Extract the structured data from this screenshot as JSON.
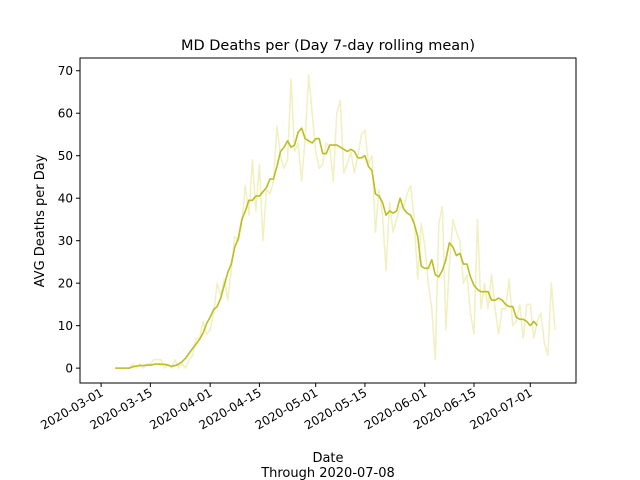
{
  "chart_data": {
    "type": "line",
    "title": "MD Deaths per (Day 7-day rolling mean)",
    "xlabel": "Date",
    "xlabel_sub": "Through 2020-07-08",
    "ylabel": "AVG Deaths per Day",
    "x_ticks": [
      "2020-03-01",
      "2020-03-15",
      "2020-04-01",
      "2020-04-15",
      "2020-05-01",
      "2020-05-15",
      "2020-06-01",
      "2020-06-15",
      "2020-07-01"
    ],
    "y_ticks": [
      0,
      10,
      20,
      30,
      40,
      50,
      60,
      70
    ],
    "xlim": [
      "2020-02-24",
      "2020-07-14"
    ],
    "ylim": [
      -3.5,
      73
    ],
    "grid": false,
    "colors": {
      "rolling_mean": "#bcbd22",
      "daily": "#f0f0c0"
    },
    "series": [
      {
        "role": "daily",
        "points": [
          [
            "2020-03-05",
            0
          ],
          [
            "2020-03-06",
            0
          ],
          [
            "2020-03-07",
            0
          ],
          [
            "2020-03-08",
            0
          ],
          [
            "2020-03-09",
            0
          ],
          [
            "2020-03-10",
            1
          ],
          [
            "2020-03-11",
            0
          ],
          [
            "2020-03-12",
            1
          ],
          [
            "2020-03-13",
            0
          ],
          [
            "2020-03-14",
            1
          ],
          [
            "2020-03-15",
            1
          ],
          [
            "2020-03-16",
            2
          ],
          [
            "2020-03-17",
            2
          ],
          [
            "2020-03-18",
            2
          ],
          [
            "2020-03-19",
            0
          ],
          [
            "2020-03-20",
            1
          ],
          [
            "2020-03-21",
            0
          ],
          [
            "2020-03-22",
            2
          ],
          [
            "2020-03-23",
            0
          ],
          [
            "2020-03-24",
            1
          ],
          [
            "2020-03-25",
            0
          ],
          [
            "2020-03-26",
            2
          ],
          [
            "2020-03-27",
            3
          ],
          [
            "2020-03-28",
            7
          ],
          [
            "2020-03-29",
            7
          ],
          [
            "2020-03-30",
            11
          ],
          [
            "2020-03-31",
            8
          ],
          [
            "2020-04-01",
            9
          ],
          [
            "2020-04-02",
            13
          ],
          [
            "2020-04-03",
            20
          ],
          [
            "2020-04-04",
            17
          ],
          [
            "2020-04-05",
            21
          ],
          [
            "2020-04-06",
            16
          ],
          [
            "2020-04-07",
            23
          ],
          [
            "2020-04-08",
            31
          ],
          [
            "2020-04-09",
            30
          ],
          [
            "2020-04-10",
            34
          ],
          [
            "2020-04-11",
            43
          ],
          [
            "2020-04-12",
            36
          ],
          [
            "2020-04-13",
            49
          ],
          [
            "2020-04-14",
            37
          ],
          [
            "2020-04-15",
            48
          ],
          [
            "2020-04-16",
            30
          ],
          [
            "2020-04-17",
            42
          ],
          [
            "2020-04-18",
            41
          ],
          [
            "2020-04-19",
            44
          ],
          [
            "2020-04-20",
            57
          ],
          [
            "2020-04-21",
            50
          ],
          [
            "2020-04-22",
            47
          ],
          [
            "2020-04-23",
            49
          ],
          [
            "2020-04-24",
            68
          ],
          [
            "2020-04-25",
            51
          ],
          [
            "2020-04-26",
            53
          ],
          [
            "2020-04-27",
            44
          ],
          [
            "2020-04-28",
            54
          ],
          [
            "2020-04-29",
            69
          ],
          [
            "2020-04-30",
            60
          ],
          [
            "2020-05-01",
            51
          ],
          [
            "2020-05-02",
            47
          ],
          [
            "2020-05-03",
            48
          ],
          [
            "2020-05-04",
            53
          ],
          [
            "2020-05-05",
            52
          ],
          [
            "2020-05-06",
            44
          ],
          [
            "2020-05-07",
            60
          ],
          [
            "2020-05-08",
            63
          ],
          [
            "2020-05-09",
            46
          ],
          [
            "2020-05-10",
            48
          ],
          [
            "2020-05-11",
            51
          ],
          [
            "2020-05-12",
            46
          ],
          [
            "2020-05-13",
            50
          ],
          [
            "2020-05-14",
            55
          ],
          [
            "2020-05-15",
            56
          ],
          [
            "2020-05-16",
            48
          ],
          [
            "2020-05-17",
            50
          ],
          [
            "2020-05-18",
            32
          ],
          [
            "2020-05-19",
            42
          ],
          [
            "2020-05-20",
            36
          ],
          [
            "2020-05-21",
            23
          ],
          [
            "2020-05-22",
            39
          ],
          [
            "2020-05-23",
            32
          ],
          [
            "2020-05-24",
            35
          ],
          [
            "2020-05-25",
            38
          ],
          [
            "2020-05-26",
            38
          ],
          [
            "2020-05-27",
            41
          ],
          [
            "2020-05-28",
            43
          ],
          [
            "2020-05-29",
            35
          ],
          [
            "2020-05-30",
            21
          ],
          [
            "2020-05-31",
            34
          ],
          [
            "2020-06-01",
            29
          ],
          [
            "2020-06-02",
            20
          ],
          [
            "2020-06-03",
            14
          ],
          [
            "2020-06-04",
            2
          ],
          [
            "2020-06-05",
            34
          ],
          [
            "2020-06-06",
            38
          ],
          [
            "2020-06-07",
            9
          ],
          [
            "2020-06-08",
            24
          ],
          [
            "2020-06-09",
            35
          ],
          [
            "2020-06-10",
            32
          ],
          [
            "2020-06-11",
            30
          ],
          [
            "2020-06-12",
            20
          ],
          [
            "2020-06-13",
            22
          ],
          [
            "2020-06-14",
            13
          ],
          [
            "2020-06-15",
            8
          ],
          [
            "2020-06-16",
            35
          ],
          [
            "2020-06-17",
            14
          ],
          [
            "2020-06-18",
            20
          ],
          [
            "2020-06-19",
            14
          ],
          [
            "2020-06-20",
            22
          ],
          [
            "2020-06-21",
            14
          ],
          [
            "2020-06-22",
            8
          ],
          [
            "2020-06-23",
            14
          ],
          [
            "2020-06-24",
            14
          ],
          [
            "2020-06-25",
            21
          ],
          [
            "2020-06-26",
            10
          ],
          [
            "2020-06-27",
            11
          ],
          [
            "2020-06-28",
            15
          ],
          [
            "2020-06-29",
            7
          ],
          [
            "2020-06-30",
            15
          ],
          [
            "2020-07-01",
            15
          ],
          [
            "2020-07-02",
            7
          ],
          [
            "2020-07-03",
            11
          ],
          [
            "2020-07-04",
            13
          ],
          [
            "2020-07-05",
            6
          ],
          [
            "2020-07-06",
            3
          ],
          [
            "2020-07-07",
            20
          ],
          [
            "2020-07-08",
            9
          ]
        ]
      },
      {
        "role": "rolling_mean",
        "points": [
          [
            "2020-03-05",
            0
          ],
          [
            "2020-03-06",
            0
          ],
          [
            "2020-03-07",
            0
          ],
          [
            "2020-03-08",
            0
          ],
          [
            "2020-03-09",
            0
          ],
          [
            "2020-03-10",
            0.3
          ],
          [
            "2020-03-11",
            0.5
          ],
          [
            "2020-03-12",
            0.6
          ],
          [
            "2020-03-13",
            0.6
          ],
          [
            "2020-03-14",
            0.7
          ],
          [
            "2020-03-15",
            0.7
          ],
          [
            "2020-03-16",
            0.9
          ],
          [
            "2020-03-17",
            1
          ],
          [
            "2020-03-18",
            0.9
          ],
          [
            "2020-03-19",
            0.9
          ],
          [
            "2020-03-20",
            0.7
          ],
          [
            "2020-03-21",
            0.4
          ],
          [
            "2020-03-22",
            0.6
          ],
          [
            "2020-03-23",
            0.9
          ],
          [
            "2020-03-24",
            1.5
          ],
          [
            "2020-03-25",
            2.3
          ],
          [
            "2020-03-26",
            3.5
          ],
          [
            "2020-03-27",
            4.6
          ],
          [
            "2020-03-28",
            5.7
          ],
          [
            "2020-03-29",
            6.8
          ],
          [
            "2020-03-30",
            8.3
          ],
          [
            "2020-03-31",
            10.5
          ],
          [
            "2020-04-01",
            12
          ],
          [
            "2020-04-02",
            13.8
          ],
          [
            "2020-04-03",
            14.5
          ],
          [
            "2020-04-04",
            16.5
          ],
          [
            "2020-04-05",
            19.5
          ],
          [
            "2020-04-06",
            22.5
          ],
          [
            "2020-04-07",
            24.5
          ],
          [
            "2020-04-08",
            28.5
          ],
          [
            "2020-04-09",
            30.5
          ],
          [
            "2020-04-10",
            35
          ],
          [
            "2020-04-11",
            37
          ],
          [
            "2020-04-12",
            39.5
          ],
          [
            "2020-04-13",
            39.5
          ],
          [
            "2020-04-14",
            40.5
          ],
          [
            "2020-04-15",
            40.5
          ],
          [
            "2020-04-16",
            41.5
          ],
          [
            "2020-04-17",
            42.5
          ],
          [
            "2020-04-18",
            44.5
          ],
          [
            "2020-04-19",
            44.5
          ],
          [
            "2020-04-20",
            47.5
          ],
          [
            "2020-04-21",
            51
          ],
          [
            "2020-04-22",
            52
          ],
          [
            "2020-04-23",
            53.5
          ],
          [
            "2020-04-24",
            52
          ],
          [
            "2020-04-25",
            52.5
          ],
          [
            "2020-04-26",
            55.5
          ],
          [
            "2020-04-27",
            56.5
          ],
          [
            "2020-04-28",
            54
          ],
          [
            "2020-04-29",
            53.5
          ],
          [
            "2020-04-30",
            53
          ],
          [
            "2020-05-01",
            54
          ],
          [
            "2020-05-02",
            54
          ],
          [
            "2020-05-03",
            50.5
          ],
          [
            "2020-05-04",
            50.5
          ],
          [
            "2020-05-05",
            52.5
          ],
          [
            "2020-05-06",
            52.5
          ],
          [
            "2020-05-07",
            52.5
          ],
          [
            "2020-05-08",
            52
          ],
          [
            "2020-05-09",
            51.5
          ],
          [
            "2020-05-10",
            51
          ],
          [
            "2020-05-11",
            51.5
          ],
          [
            "2020-05-12",
            51
          ],
          [
            "2020-05-13",
            49.5
          ],
          [
            "2020-05-14",
            49.5
          ],
          [
            "2020-05-15",
            50
          ],
          [
            "2020-05-16",
            47.5
          ],
          [
            "2020-05-17",
            46.5
          ],
          [
            "2020-05-18",
            41
          ],
          [
            "2020-05-19",
            40.5
          ],
          [
            "2020-05-20",
            39
          ],
          [
            "2020-05-21",
            36
          ],
          [
            "2020-05-22",
            37
          ],
          [
            "2020-05-23",
            36.5
          ],
          [
            "2020-05-24",
            37
          ],
          [
            "2020-05-25",
            40
          ],
          [
            "2020-05-26",
            37.5
          ],
          [
            "2020-05-27",
            36.5
          ],
          [
            "2020-05-28",
            36
          ],
          [
            "2020-05-29",
            34
          ],
          [
            "2020-05-30",
            31
          ],
          [
            "2020-05-31",
            24
          ],
          [
            "2020-06-01",
            23.5
          ],
          [
            "2020-06-02",
            23.5
          ],
          [
            "2020-06-03",
            25.5
          ],
          [
            "2020-06-04",
            22
          ],
          [
            "2020-06-05",
            21.5
          ],
          [
            "2020-06-06",
            23
          ],
          [
            "2020-06-07",
            25.5
          ],
          [
            "2020-06-08",
            29.5
          ],
          [
            "2020-06-09",
            28.5
          ],
          [
            "2020-06-10",
            26.5
          ],
          [
            "2020-06-11",
            27
          ],
          [
            "2020-06-12",
            24.5
          ],
          [
            "2020-06-13",
            24.5
          ],
          [
            "2020-06-14",
            21.5
          ],
          [
            "2020-06-15",
            19.5
          ],
          [
            "2020-06-16",
            18.5
          ],
          [
            "2020-06-17",
            18
          ],
          [
            "2020-06-18",
            18
          ],
          [
            "2020-06-19",
            18
          ],
          [
            "2020-06-20",
            16
          ],
          [
            "2020-06-21",
            16
          ],
          [
            "2020-06-22",
            16.5
          ],
          [
            "2020-06-23",
            16
          ],
          [
            "2020-06-24",
            15
          ],
          [
            "2020-06-25",
            14.5
          ],
          [
            "2020-06-26",
            14.5
          ],
          [
            "2020-06-27",
            12
          ],
          [
            "2020-06-28",
            11.5
          ],
          [
            "2020-06-29",
            11.5
          ],
          [
            "2020-06-30",
            11
          ],
          [
            "2020-07-01",
            10
          ],
          [
            "2020-07-02",
            11
          ],
          [
            "2020-07-03",
            10
          ]
        ]
      }
    ]
  }
}
